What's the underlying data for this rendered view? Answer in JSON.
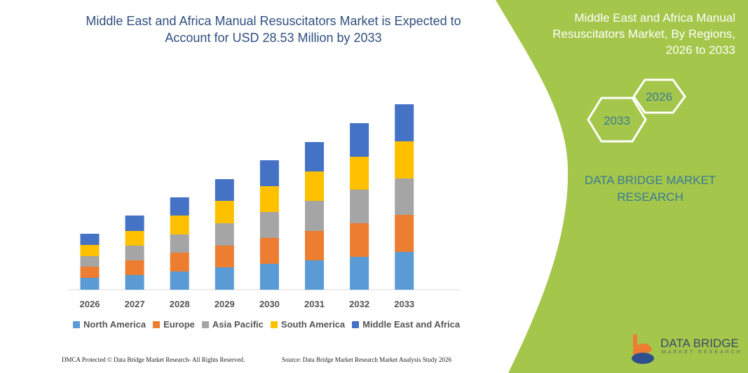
{
  "title": "Middle East and Africa Manual Resuscitators Market is Expected to Account for USD 28.53 Million by 2033",
  "side_panel": {
    "title": "Middle East and Africa Manual Resuscitators Market, By Regions, 2026 to 2033",
    "hex_start": "2026",
    "hex_end": "2033",
    "brand": "DATA BRIDGE MARKET RESEARCH",
    "accent": "#a4c64a"
  },
  "footer": {
    "left": "DMCA Protected © Data Bridge Market Research- All Rights Reserved.",
    "right": "Source: Data Bridge Market Research  Market Analysis Study 2026"
  },
  "logo": {
    "name": "DATA BRIDGE",
    "tagline": "MARKET RESEARCH"
  },
  "chart_data": {
    "type": "bar",
    "stacked": true,
    "grid": false,
    "legend_placement": "bottom",
    "categories": [
      "2026",
      "2027",
      "2028",
      "2029",
      "2030",
      "2031",
      "2032",
      "2033"
    ],
    "series": [
      {
        "name": "North America",
        "color": "#5b9bd5",
        "values": [
          17,
          21,
          26,
          32,
          37,
          42,
          47,
          54
        ]
      },
      {
        "name": "Europe",
        "color": "#ed7d31",
        "values": [
          16,
          21,
          27,
          31,
          37,
          42,
          48,
          53
        ]
      },
      {
        "name": "Asia Pacific",
        "color": "#a5a5a5",
        "values": [
          15,
          21,
          26,
          32,
          37,
          43,
          48,
          52
        ]
      },
      {
        "name": "South America",
        "color": "#ffc000",
        "values": [
          16,
          21,
          27,
          32,
          37,
          42,
          47,
          53
        ]
      },
      {
        "name": "Middle East and Africa",
        "color": "#4472c4",
        "values": [
          16,
          22,
          26,
          31,
          37,
          42,
          48,
          53
        ]
      }
    ]
  }
}
